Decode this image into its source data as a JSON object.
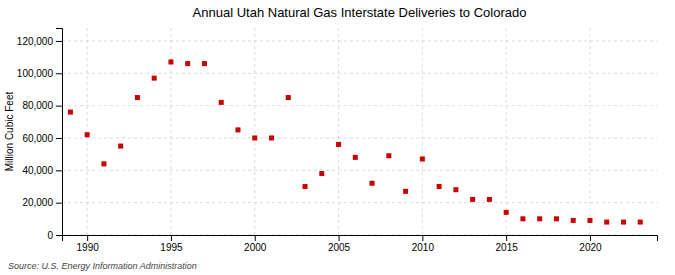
{
  "chart_data": {
    "type": "scatter",
    "title": "Annual Utah Natural Gas Interstate Deliveries to Colorado",
    "ylabel": "Million Cubic Feet",
    "source": "Source: U.S. Energy Information Administration",
    "x": [
      1989,
      1990,
      1991,
      1992,
      1993,
      1994,
      1995,
      1996,
      1997,
      1998,
      1999,
      2000,
      2001,
      2002,
      2003,
      2004,
      2005,
      2006,
      2007,
      2008,
      2009,
      2010,
      2011,
      2012,
      2013,
      2014,
      2015,
      2016,
      2017,
      2018,
      2019,
      2020,
      2021,
      2022,
      2023
    ],
    "values": [
      76000,
      62000,
      44000,
      55000,
      85000,
      97000,
      107000,
      106000,
      106000,
      82000,
      65000,
      60000,
      60000,
      85000,
      30000,
      38000,
      56000,
      48000,
      32000,
      49000,
      27000,
      47000,
      30000,
      28000,
      22000,
      22000,
      14000,
      10000,
      10000,
      10000,
      9000,
      9000,
      8000,
      8000,
      8000
    ],
    "color": "#cc0000",
    "marker": "square",
    "xlim": [
      1988.5,
      2024
    ],
    "ylim": [
      0,
      128000
    ],
    "xticks": [
      1990,
      1995,
      2000,
      2005,
      2010,
      2015,
      2020
    ],
    "yticks": [
      0,
      {
        "value": 20000,
        "label": "20,000"
      },
      {
        "value": 40000,
        "label": "40,000"
      },
      {
        "value": 60000,
        "label": "60,000"
      },
      {
        "value": 80000,
        "label": "80,000"
      },
      {
        "value": 100000,
        "label": "100,000"
      },
      {
        "value": 120000,
        "label": "120,000"
      }
    ],
    "grid": true
  }
}
